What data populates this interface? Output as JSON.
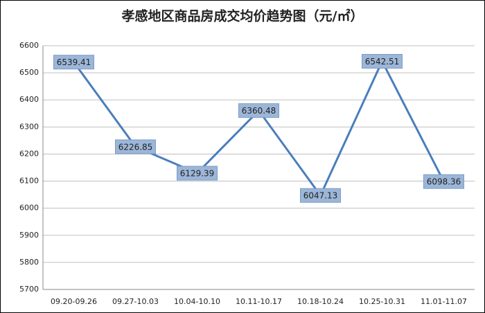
{
  "chart_data": {
    "type": "line",
    "title": "孝感地区商品房成交均价趋势图（元/㎡）",
    "categories": [
      "09.20-09.26",
      "09.27-10.03",
      "10.04-10.10",
      "10.11-10.17",
      "10.18-10.24",
      "10.25-10.31",
      "11.01-11.07"
    ],
    "values": [
      6539.41,
      6226.85,
      6129.39,
      6360.48,
      6047.13,
      6542.51,
      6098.36
    ],
    "color": "#4a7ebb",
    "ylim": [
      5700,
      6600
    ],
    "yticks": [
      5700,
      5800,
      5900,
      6000,
      6100,
      6200,
      6300,
      6400,
      6500,
      6600
    ],
    "grid": true
  }
}
